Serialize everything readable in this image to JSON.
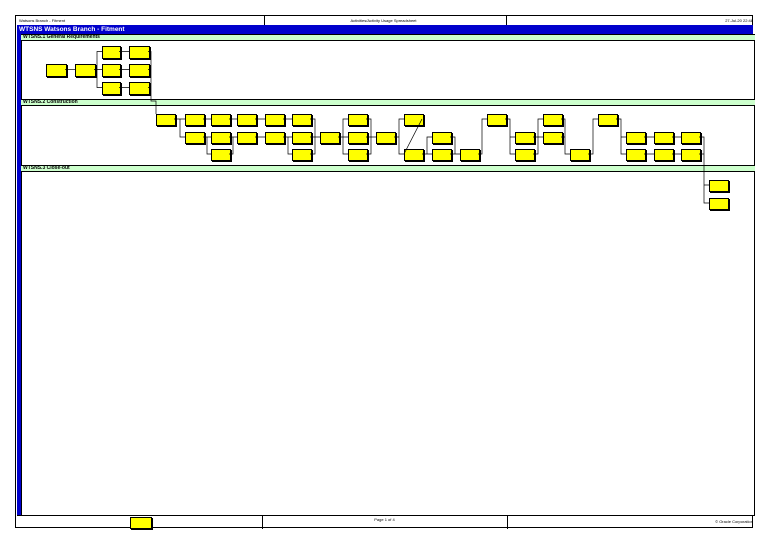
{
  "header": {
    "left": "Watsons Branch - Fitment",
    "center": "Activities/Activity Usage Spreadsheet",
    "right": "27-Jul-20 22:48"
  },
  "project": {
    "title": "WTSNS  Watsons Branch - Fitment"
  },
  "wbs": [
    {
      "label": "WTSNS.1  General Requirements"
    },
    {
      "label": "WTSNS.2  Construction"
    },
    {
      "label": "WTSNS.3  Close-out"
    }
  ],
  "footer": {
    "center": "Page 1 of 4",
    "right": "© Oracle Corporation"
  },
  "legend_label": "",
  "colors": {
    "activity": "#ffff00",
    "wbs_band": "#ccffcc",
    "project_bar": "#0000cc"
  }
}
